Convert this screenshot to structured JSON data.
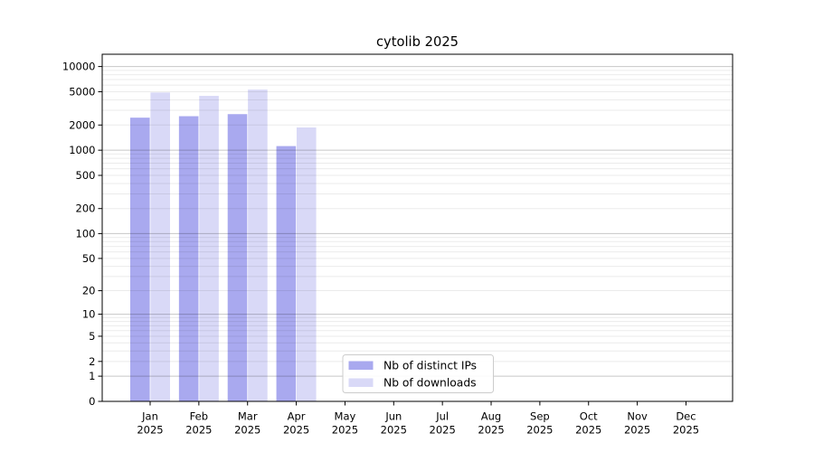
{
  "chart_data": {
    "type": "bar",
    "title": "cytolib 2025",
    "categories": [
      "Jan 2025",
      "Feb 2025",
      "Mar 2025",
      "Apr 2025",
      "May 2025",
      "Jun 2025",
      "Jul 2025",
      "Aug 2025",
      "Sep 2025",
      "Oct 2025",
      "Nov 2025",
      "Dec 2025"
    ],
    "series": [
      {
        "name": "Nb of distinct IPs",
        "color": "#a9a9ef",
        "values": [
          2450,
          2550,
          2700,
          1120,
          0,
          0,
          0,
          0,
          0,
          0,
          0,
          0
        ]
      },
      {
        "name": "Nb of downloads",
        "color": "#d9d9f7",
        "values": [
          4890,
          4460,
          5300,
          1870,
          0,
          0,
          0,
          0,
          0,
          0,
          0,
          0
        ]
      }
    ],
    "xlabel": "",
    "ylabel": "",
    "y_scale": "log10(1+v) pseudo-log",
    "y_ticks": [
      0,
      1,
      2,
      5,
      10,
      20,
      50,
      100,
      200,
      500,
      1000,
      2000,
      5000,
      10000
    ],
    "ylim": [
      0,
      14000
    ],
    "grid": "horizontal major + minor, drawn over bars",
    "legend_position": "inside plot, lower center",
    "colors": {
      "major_grid": "rgba(0,0,0,0.22)",
      "minor_grid": "rgba(0,0,0,0.08)",
      "axis": "#000000",
      "legend_border": "#cccccc",
      "background": "#ffffff"
    }
  }
}
